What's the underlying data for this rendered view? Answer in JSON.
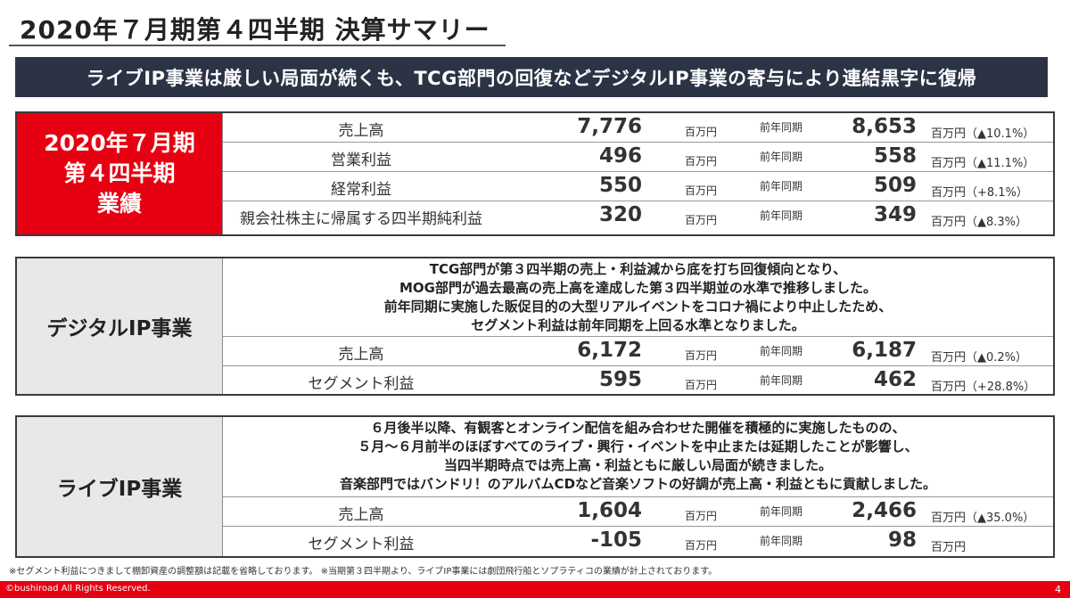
{
  "title": "2020年７月期第４四半期 決算サマリー",
  "banner": "ライブIP事業は厳しい局面が続くも、TCG部門の回復などデジタルIP事業の寄与により連結黒字に復帰",
  "summary": {
    "label_lines": [
      "2020年７月期",
      "第４四半期",
      "業績"
    ],
    "rows": [
      {
        "name": "売上高",
        "value": "7,776",
        "unit": "百万円",
        "prev_label": "前年同期",
        "prev_value": "8,653",
        "change": "百万円（▲10.1%）"
      },
      {
        "name": "営業利益",
        "value": "496",
        "unit": "百万円",
        "prev_label": "前年同期",
        "prev_value": "558",
        "change": "百万円（▲11.1%）"
      },
      {
        "name": "経常利益",
        "value": "550",
        "unit": "百万円",
        "prev_label": "前年同期",
        "prev_value": "509",
        "change": "百万円（+8.1%）"
      },
      {
        "name": "親会社株主に帰属する四半期純利益",
        "value": "320",
        "unit": "百万円",
        "prev_label": "前年同期",
        "prev_value": "349",
        "change": "百万円（▲8.3%）"
      }
    ]
  },
  "digital": {
    "label": "デジタルIP事業",
    "desc": [
      "TCG部門が第３四半期の売上・利益減から底を打ち回復傾向となり、",
      "MOG部門が過去最高の売上高を達成した第３四半期並の水準で推移しました。",
      "前年同期に実施した販促目的の大型リアルイベントをコロナ禍により中止したため、",
      "セグメント利益は前年同期を上回る水準となりました。"
    ],
    "rows": [
      {
        "name": "売上高",
        "value": "6,172",
        "unit": "百万円",
        "prev_label": "前年同期",
        "prev_value": "6,187",
        "change": "百万円（▲0.2%）"
      },
      {
        "name": "セグメント利益",
        "value": "595",
        "unit": "百万円",
        "prev_label": "前年同期",
        "prev_value": "462",
        "change": "百万円（+28.8%）"
      }
    ]
  },
  "live": {
    "label": "ライブIP事業",
    "desc": [
      "６月後半以降、有観客とオンライン配信を組み合わせた開催を積極的に実施したものの、",
      "５月～６月前半のほぼすべてのライブ・興行・イベントを中止または延期したことが影響し、",
      "当四半期時点では売上高・利益ともに厳しい局面が続きました。",
      "音楽部門ではバンドリ！のアルバムCDなど音楽ソフトの好調が売上高・利益ともに貢献しました。"
    ],
    "rows": [
      {
        "name": "売上高",
        "value": "1,604",
        "unit": "百万円",
        "prev_label": "前年同期",
        "prev_value": "2,466",
        "change": "百万円（▲35.0%）"
      },
      {
        "name": "セグメント利益",
        "value": "-105",
        "unit": "百万円",
        "prev_label": "前年同期",
        "prev_value": "98",
        "change": "百万円"
      }
    ]
  },
  "footnote": "※セグメント利益につきまして棚卸資産の調整額は記載を省略しております。 ※当期第３四半期より、ライブIP事業には劇団飛行船とソプラティコの業績が計上されております。",
  "footer": {
    "copyright": "©bushiroad All Rights Reserved.",
    "page": "4"
  },
  "colors": {
    "accent_red": "#e60012",
    "banner_navy": "#2b3345",
    "label_gray": "#e8e8e8"
  }
}
